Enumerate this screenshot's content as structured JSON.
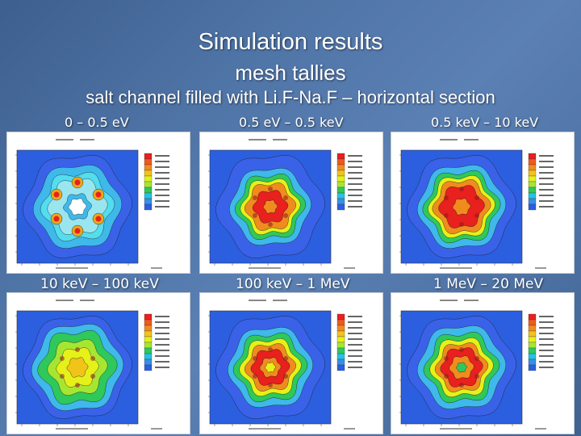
{
  "slide": {
    "title": "Simulation results",
    "subtitle": "mesh tallies",
    "caption": "salt channel filled with Li.F-Na.F – horizontal section"
  },
  "colors": {
    "background": "#4f74a6",
    "text": "#ffffff",
    "plot_blue": "#2b5fe0",
    "plot_cyan": "#22c3e6",
    "plot_green": "#2fc85a",
    "plot_yellow": "#e6f019",
    "plot_orange": "#f08c1e",
    "plot_red": "#e8201e"
  },
  "panels": [
    {
      "range": "0 – 0.5 eV",
      "pattern": "ring"
    },
    {
      "range": "0.5 eV – 0.5 keV",
      "pattern": "hot-center"
    },
    {
      "range": "0.5 keV – 10 keV",
      "pattern": "hot-center-large"
    },
    {
      "range": "10 keV – 100 keV",
      "pattern": "center-yellow"
    },
    {
      "range": "100 keV – 1 MeV",
      "pattern": "center-orange"
    },
    {
      "range": "1 MeV – 20 MeV",
      "pattern": "center-mixed"
    }
  ]
}
